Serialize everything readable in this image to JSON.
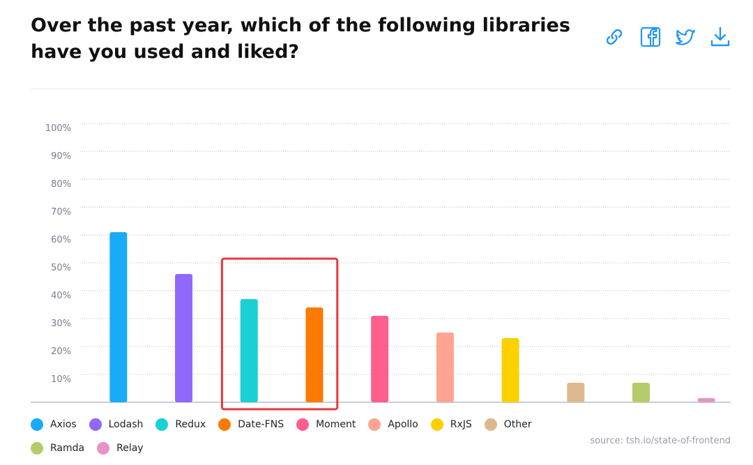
{
  "title": "Over the past year, which of the following libraries have you used and liked?",
  "actions": [
    {
      "name": "link-icon",
      "color": "#2196f3"
    },
    {
      "name": "facebook-icon",
      "color": "#2196f3"
    },
    {
      "name": "twitter-icon",
      "color": "#2196f3"
    },
    {
      "name": "download-icon",
      "color": "#2196f3"
    }
  ],
  "source": "source: tsh.io/state-of-frontend",
  "chart_data": {
    "type": "bar",
    "title": "Over the past year, which of the following libraries have you used and liked?",
    "categories": [
      "Axios",
      "Lodash",
      "Redux",
      "Date-FNS",
      "Moment",
      "Apollo",
      "RxJS",
      "Other",
      "Ramda",
      "Relay"
    ],
    "values": [
      61,
      46,
      37,
      34,
      31,
      25,
      23,
      7,
      7,
      1.5
    ],
    "colors": [
      "#1aabf8",
      "#9069fb",
      "#1ad0d3",
      "#fd7a00",
      "#ff5f8d",
      "#ffa393",
      "#fdd000",
      "#deb88d",
      "#b5cc6b",
      "#e892c7"
    ],
    "yticks": [
      "10%",
      "20%",
      "30%",
      "40%",
      "50%",
      "60%",
      "70%",
      "80%",
      "90%",
      "100%"
    ],
    "ylim": [
      0,
      100
    ],
    "grid": true,
    "legend_position": "bottom-left",
    "highlight": {
      "categories": [
        "Redux",
        "Date-FNS"
      ],
      "color": "#e8363c"
    }
  }
}
